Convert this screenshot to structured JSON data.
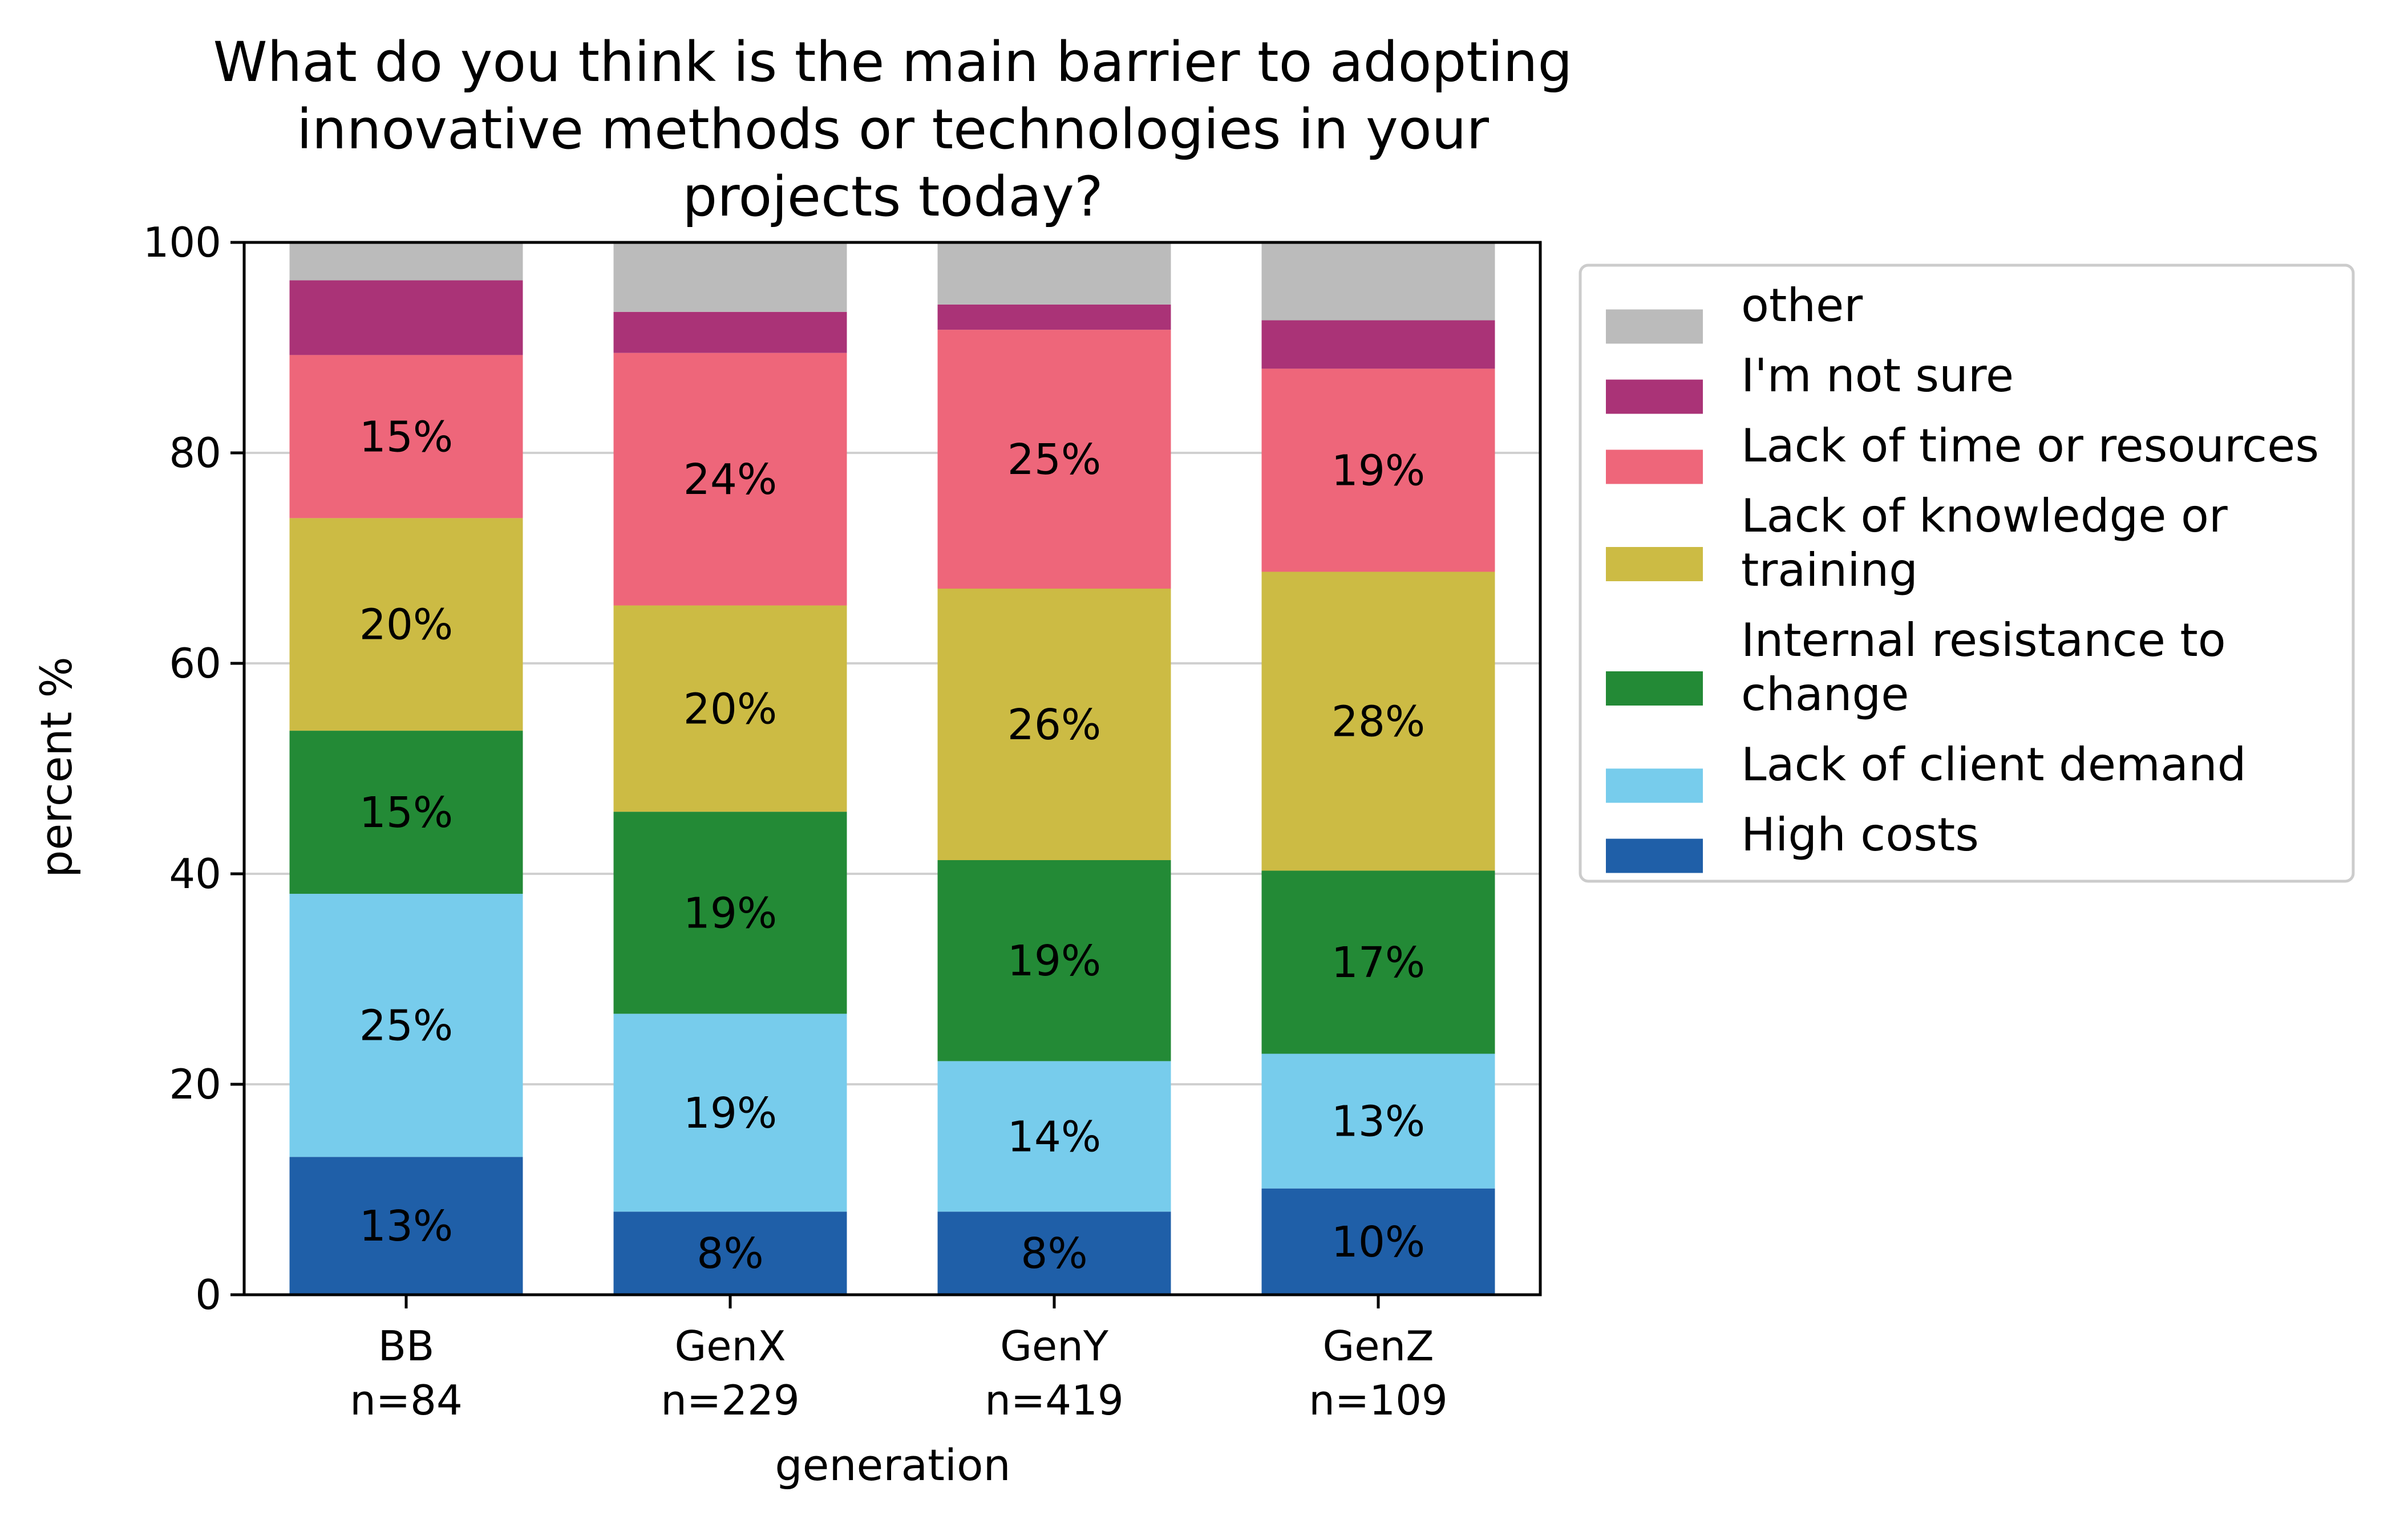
{
  "chart_data": {
    "type": "bar",
    "stacked": true,
    "title": "What do you think is the main barrier to adopting innovative methods or technologies in your projects today?",
    "title_lines": [
      "What do you think is the main barrier to adopting",
      "innovative methods or technologies in your",
      "projects today?"
    ],
    "xlabel": "generation",
    "ylabel": "percent %",
    "ylim": [
      0,
      100
    ],
    "yticks": [
      0,
      20,
      40,
      60,
      80,
      100
    ],
    "grid": "horizontal",
    "legend_placement": "outside-right-top",
    "categories": [
      {
        "name": "BB",
        "n": "n=84"
      },
      {
        "name": "GenX",
        "n": "n=229"
      },
      {
        "name": "GenY",
        "n": "n=419"
      },
      {
        "name": "GenZ",
        "n": "n=109"
      }
    ],
    "series": [
      {
        "name": "High costs",
        "legend_lines": [
          "High costs"
        ],
        "color": "#1f5fa8",
        "values": [
          13.1,
          7.9,
          7.9,
          10.1
        ],
        "labels": [
          "13%",
          "8%",
          "8%",
          "10%"
        ]
      },
      {
        "name": "Lack of client demand",
        "legend_lines": [
          "Lack of client demand"
        ],
        "color": "#77ccec",
        "values": [
          25,
          18.8,
          14.3,
          12.8
        ],
        "labels": [
          "25%",
          "19%",
          "14%",
          "13%"
        ]
      },
      {
        "name": "Internal resistance to change",
        "legend_lines": [
          "Internal resistance to",
          "change"
        ],
        "color": "#238a36",
        "values": [
          15.5,
          19.2,
          19.1,
          17.4
        ],
        "labels": [
          "15%",
          "19%",
          "19%",
          "17%"
        ]
      },
      {
        "name": "Lack of knowledge or training",
        "legend_lines": [
          "Lack of knowledge or",
          "training"
        ],
        "color": "#ccbb44",
        "values": [
          20.2,
          19.6,
          25.8,
          28.4
        ],
        "labels": [
          "20%",
          "20%",
          "26%",
          "28%"
        ]
      },
      {
        "name": "Lack of time or resources",
        "legend_lines": [
          "Lack of time or resources"
        ],
        "color": "#ee667a",
        "values": [
          15.5,
          24,
          24.6,
          19.3
        ],
        "labels": [
          "15%",
          "24%",
          "25%",
          "19%"
        ]
      },
      {
        "name": "I'm not sure",
        "legend_lines": [
          "I'm not sure"
        ],
        "color": "#aa3377",
        "values": [
          7.1,
          3.9,
          2.4,
          4.6
        ],
        "labels": [
          "",
          "",
          "",
          ""
        ]
      },
      {
        "name": "other",
        "legend_lines": [
          "other"
        ],
        "color": "#bbbbbb",
        "values": [
          3.6,
          6.6,
          5.9,
          7.4
        ],
        "labels": [
          "",
          "",
          "",
          ""
        ]
      }
    ]
  }
}
